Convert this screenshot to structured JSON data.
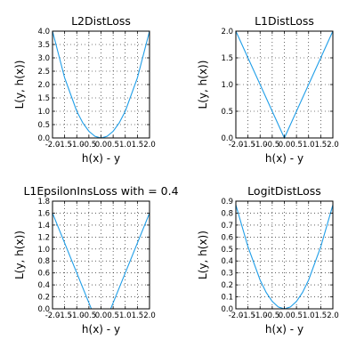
{
  "figure": {
    "background": "#ffffff",
    "line_color": "#1f9ee8",
    "grid_color": "#000000",
    "grid_style": "dotted"
  },
  "chart_data": [
    {
      "type": "line",
      "title": "L2DistLoss",
      "xlabel": "h(x) - y",
      "ylabel": "L(y, h(x))",
      "xlim": [
        -2.0,
        2.0
      ],
      "ylim": [
        0.0,
        4.0
      ],
      "grid": true,
      "x_ticks": [
        "-2.0",
        "-1.5",
        "-1.0",
        "-0.5",
        "0.0",
        "0.5",
        "1.0",
        "1.5",
        "2.0"
      ],
      "y_ticks": [
        "0.0",
        "0.5",
        "1.0",
        "1.5",
        "2.0",
        "2.5",
        "3.0",
        "3.5",
        "4.0"
      ],
      "series": [
        {
          "x": [
            -2.0,
            -1.5,
            -1.0,
            -0.75,
            -0.5,
            -0.25,
            0.0,
            0.25,
            0.5,
            0.75,
            1.0,
            1.5,
            2.0
          ],
          "y": [
            4.0,
            2.25,
            1.0,
            0.5625,
            0.25,
            0.0625,
            0.0,
            0.0625,
            0.25,
            0.5625,
            1.0,
            2.25,
            4.0
          ]
        }
      ]
    },
    {
      "type": "line",
      "title": "L1DistLoss",
      "xlabel": "h(x) - y",
      "ylabel": "L(y, h(x))",
      "xlim": [
        -2.0,
        2.0
      ],
      "ylim": [
        0.0,
        2.0
      ],
      "grid": true,
      "x_ticks": [
        "-2.0",
        "-1.5",
        "-1.0",
        "-0.5",
        "0.0",
        "0.5",
        "1.0",
        "1.5",
        "2.0"
      ],
      "y_ticks": [
        "0.0",
        "0.5",
        "1.0",
        "1.5",
        "2.0"
      ],
      "series": [
        {
          "x": [
            -2.0,
            0.0,
            2.0
          ],
          "y": [
            2.0,
            0.0,
            2.0
          ]
        }
      ]
    },
    {
      "type": "line",
      "title": "L1EpsilonInsLoss with  = 0.4",
      "xlabel": "h(x) - y",
      "ylabel": "L(y, h(x))",
      "xlim": [
        -2.0,
        2.0
      ],
      "ylim": [
        0.0,
        1.8
      ],
      "grid": true,
      "x_ticks": [
        "-2.0",
        "-1.5",
        "-1.0",
        "-0.5",
        "0.0",
        "0.5",
        "1.0",
        "1.5",
        "2.0"
      ],
      "y_ticks": [
        "0.0",
        "0.2",
        "0.4",
        "0.6",
        "0.8",
        "1.0",
        "1.2",
        "1.4",
        "1.6",
        "1.8"
      ],
      "series": [
        {
          "x": [
            -2.0,
            -0.4,
            0.4,
            2.0
          ],
          "y": [
            1.6,
            0.0,
            0.0,
            1.6
          ]
        }
      ]
    },
    {
      "type": "line",
      "title": "LogitDistLoss",
      "xlabel": "h(x) - y",
      "ylabel": "L(y, h(x))",
      "xlim": [
        -2.0,
        2.0
      ],
      "ylim": [
        0.0,
        0.9
      ],
      "grid": true,
      "x_ticks": [
        "-2.0",
        "-1.5",
        "-1.0",
        "-0.5",
        "0.0",
        "0.5",
        "1.0",
        "1.5",
        "2.0"
      ],
      "y_ticks": [
        "0.0",
        "0.1",
        "0.2",
        "0.3",
        "0.4",
        "0.5",
        "0.6",
        "0.7",
        "0.8",
        "0.9"
      ],
      "series": [
        {
          "x": [
            -2.0,
            -1.5,
            -1.0,
            -0.75,
            -0.5,
            -0.25,
            0.0,
            0.25,
            0.5,
            0.75,
            1.0,
            1.5,
            2.0
          ],
          "y": [
            0.868,
            0.518,
            0.241,
            0.137,
            0.062,
            0.016,
            0.0,
            0.016,
            0.062,
            0.137,
            0.241,
            0.518,
            0.868
          ]
        }
      ]
    }
  ]
}
